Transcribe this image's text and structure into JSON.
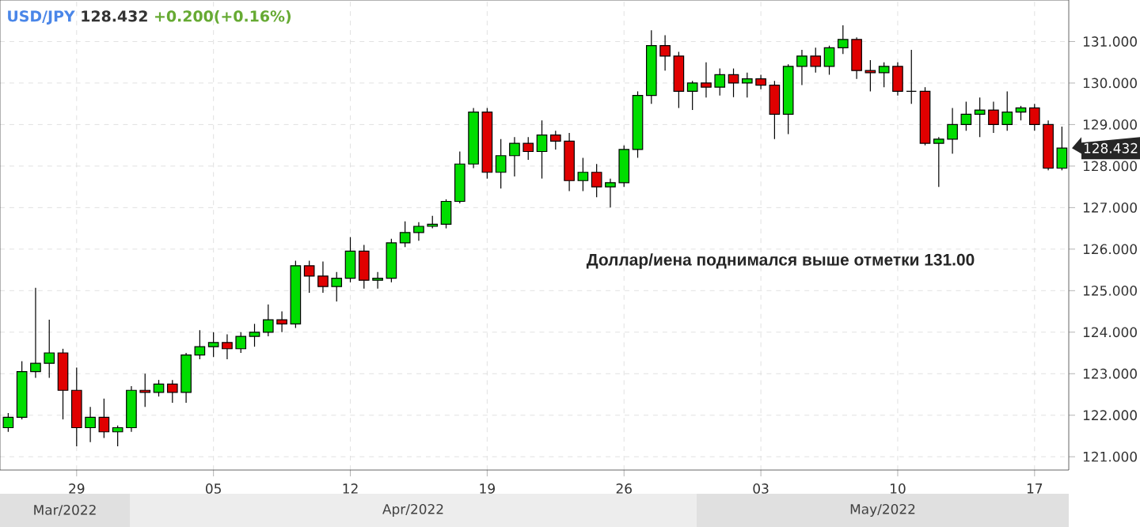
{
  "chart_data": {
    "type": "candlestick",
    "title": "USD/JPY",
    "subtitle": "128.432",
    "annotations": [
      "+0.200(+0.16%)",
      "Доллар/иена поднимался выше отметки 131.00",
      "Mar/2022",
      "Apr/2022",
      "May/2022",
      "128.432"
    ],
    "categories": [
      null,
      null,
      null,
      null,
      null,
      "29",
      null,
      null,
      null,
      null,
      null,
      null,
      null,
      null,
      null,
      "05",
      null,
      null,
      null,
      null,
      null,
      null,
      null,
      null,
      null,
      "12",
      null,
      null,
      null,
      null,
      null,
      null,
      null,
      null,
      null,
      "19",
      null,
      null,
      null,
      null,
      null,
      null,
      null,
      null,
      null,
      "26",
      null,
      null,
      null,
      null,
      null,
      null,
      null,
      null,
      null,
      "03",
      null,
      null,
      null,
      null,
      null,
      null,
      null,
      null,
      null,
      "10",
      null,
      null,
      null,
      null,
      null,
      null,
      null,
      null,
      null,
      "17",
      null,
      null
    ],
    "ohlc": [
      [
        121.7,
        122.05,
        121.6,
        121.95
      ],
      [
        121.95,
        123.3,
        121.9,
        123.05
      ],
      [
        123.05,
        125.07,
        122.9,
        123.25
      ],
      [
        123.25,
        124.3,
        122.9,
        123.5
      ],
      [
        123.5,
        123.6,
        121.9,
        122.6
      ],
      [
        122.6,
        123.15,
        121.25,
        121.7
      ],
      [
        121.7,
        122.2,
        121.35,
        121.95
      ],
      [
        121.95,
        122.4,
        121.45,
        121.6
      ],
      [
        121.6,
        121.75,
        121.25,
        121.7
      ],
      [
        121.7,
        122.7,
        121.6,
        122.6
      ],
      [
        122.6,
        123.0,
        122.2,
        122.55
      ],
      [
        122.55,
        122.85,
        122.45,
        122.75
      ],
      [
        122.75,
        122.85,
        122.3,
        122.55
      ],
      [
        122.55,
        123.5,
        122.3,
        123.45
      ],
      [
        123.45,
        124.05,
        123.35,
        123.65
      ],
      [
        123.65,
        124.0,
        123.4,
        123.75
      ],
      [
        123.75,
        123.95,
        123.35,
        123.6
      ],
      [
        123.6,
        124.0,
        123.5,
        123.9
      ],
      [
        123.9,
        124.2,
        123.65,
        124.0
      ],
      [
        124.0,
        124.67,
        123.9,
        124.3
      ],
      [
        124.3,
        124.5,
        124.0,
        124.2
      ],
      [
        124.2,
        125.72,
        124.1,
        125.6
      ],
      [
        125.6,
        125.72,
        124.95,
        125.35
      ],
      [
        125.35,
        125.7,
        124.95,
        125.1
      ],
      [
        125.1,
        125.45,
        124.74,
        125.3
      ],
      [
        125.3,
        126.29,
        125.2,
        125.95
      ],
      [
        125.95,
        126.1,
        125.05,
        125.25
      ],
      [
        125.25,
        125.45,
        125.05,
        125.3
      ],
      [
        125.3,
        126.25,
        125.2,
        126.15
      ],
      [
        126.15,
        126.67,
        126.05,
        126.4
      ],
      [
        126.4,
        126.65,
        126.2,
        126.55
      ],
      [
        126.55,
        126.8,
        126.5,
        126.6
      ],
      [
        126.6,
        127.2,
        126.5,
        127.15
      ],
      [
        127.15,
        128.35,
        127.1,
        128.05
      ],
      [
        128.05,
        129.4,
        127.95,
        129.3
      ],
      [
        129.3,
        129.4,
        127.7,
        127.85
      ],
      [
        127.85,
        128.65,
        127.46,
        128.25
      ],
      [
        128.25,
        128.7,
        127.75,
        128.55
      ],
      [
        128.55,
        128.7,
        128.15,
        128.35
      ],
      [
        128.35,
        129.1,
        127.7,
        128.75
      ],
      [
        128.75,
        128.85,
        128.4,
        128.6
      ],
      [
        128.6,
        128.8,
        127.4,
        127.65
      ],
      [
        127.65,
        128.2,
        127.4,
        127.85
      ],
      [
        127.85,
        128.05,
        127.25,
        127.5
      ],
      [
        127.5,
        127.7,
        127.0,
        127.6
      ],
      [
        127.6,
        128.5,
        127.5,
        128.4
      ],
      [
        128.4,
        129.8,
        128.2,
        129.7
      ],
      [
        129.7,
        131.27,
        129.5,
        130.9
      ],
      [
        130.9,
        131.15,
        130.3,
        130.65
      ],
      [
        130.65,
        130.75,
        129.4,
        129.8
      ],
      [
        129.8,
        130.05,
        129.35,
        130.0
      ],
      [
        130.0,
        130.5,
        129.65,
        129.9
      ],
      [
        129.9,
        130.35,
        129.7,
        130.2
      ],
      [
        130.2,
        130.35,
        129.66,
        130.0
      ],
      [
        130.0,
        130.25,
        129.65,
        130.1
      ],
      [
        130.1,
        130.2,
        129.85,
        129.95
      ],
      [
        129.95,
        130.05,
        128.65,
        129.25
      ],
      [
        129.25,
        130.45,
        128.77,
        130.4
      ],
      [
        130.4,
        130.8,
        129.95,
        130.65
      ],
      [
        130.65,
        130.85,
        130.25,
        130.4
      ],
      [
        130.4,
        130.9,
        130.2,
        130.85
      ],
      [
        130.85,
        131.39,
        130.7,
        131.05
      ],
      [
        131.05,
        131.1,
        130.1,
        130.3
      ],
      [
        130.3,
        130.55,
        129.8,
        130.25
      ],
      [
        130.25,
        130.5,
        129.9,
        130.4
      ],
      [
        130.4,
        130.5,
        129.7,
        129.8
      ],
      [
        129.8,
        130.8,
        129.5,
        129.8
      ],
      [
        129.8,
        129.9,
        128.5,
        128.55
      ],
      [
        128.55,
        128.7,
        127.5,
        128.65
      ],
      [
        128.65,
        129.4,
        128.3,
        129.0
      ],
      [
        129.0,
        129.55,
        128.85,
        129.25
      ],
      [
        129.25,
        129.65,
        128.7,
        129.35
      ],
      [
        129.35,
        129.55,
        128.8,
        129.0
      ],
      [
        129.0,
        129.8,
        128.85,
        129.3
      ],
      [
        129.3,
        129.45,
        129.1,
        129.4
      ],
      [
        129.4,
        129.5,
        128.85,
        129.0
      ],
      [
        129.0,
        129.1,
        127.9,
        127.95
      ],
      [
        127.95,
        128.95,
        127.9,
        128.432
      ]
    ],
    "ylim": [
      120.68,
      132.0
    ],
    "yticks": [
      {
        "value": 121,
        "label": "121.000"
      },
      {
        "value": 122,
        "label": "122.000"
      },
      {
        "value": 123,
        "label": "123.000"
      },
      {
        "value": 124,
        "label": "124.000"
      },
      {
        "value": 125,
        "label": "125.000"
      },
      {
        "value": 126,
        "label": "126.000"
      },
      {
        "value": 127,
        "label": "127.000"
      },
      {
        "value": 128,
        "label": "128.000"
      },
      {
        "value": 129,
        "label": "129.000"
      },
      {
        "value": 130,
        "label": "130.000"
      },
      {
        "value": 131,
        "label": "131.000"
      }
    ],
    "grid": true
  }
}
